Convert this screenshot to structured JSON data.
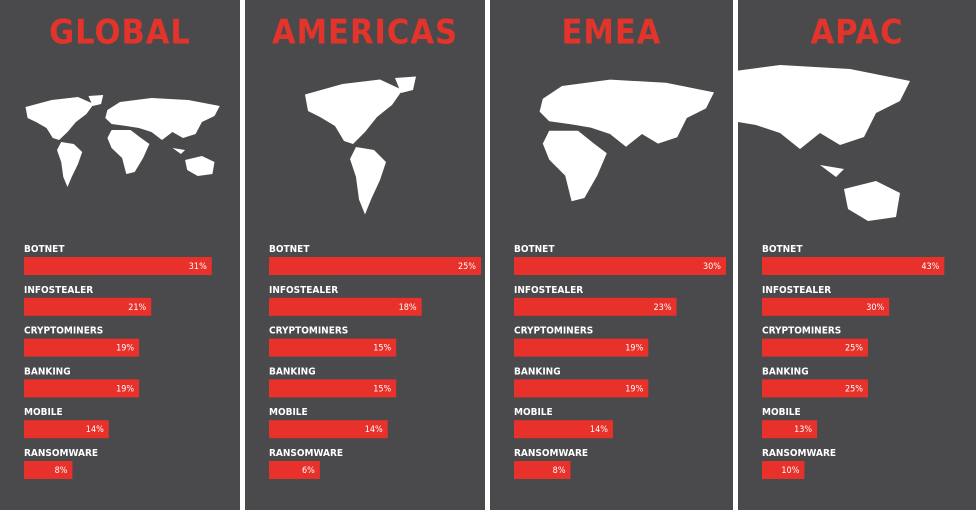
{
  "chart_data": [
    {
      "type": "bar",
      "title": "GLOBAL",
      "categories": [
        "BOTNET",
        "INFOSTEALER",
        "CRYPTOMINERS",
        "BANKING",
        "MOBILE",
        "RANSOMWARE"
      ],
      "values": [
        31,
        21,
        19,
        19,
        14,
        8
      ],
      "value_labels": [
        "31%",
        "21%",
        "19%",
        "19%",
        "14%",
        "8%"
      ],
      "color": "#e8312a",
      "xlim": [
        0,
        35
      ]
    },
    {
      "type": "bar",
      "title": "AMERICAS",
      "categories": [
        "BOTNET",
        "INFOSTEALER",
        "CRYPTOMINERS",
        "BANKING",
        "MOBILE",
        "RANSOMWARE"
      ],
      "values": [
        25,
        18,
        15,
        15,
        14,
        6
      ],
      "value_labels": [
        "25%",
        "18%",
        "15%",
        "15%",
        "14%",
        "6%"
      ],
      "color": "#e8312a",
      "xlim": [
        0,
        25
      ]
    },
    {
      "type": "bar",
      "title": "EMEA",
      "categories": [
        "BOTNET",
        "INFOSTEALER",
        "CRYPTOMINERS",
        "BANKING",
        "MOBILE",
        "RANSOMWARE"
      ],
      "values": [
        30,
        23,
        19,
        19,
        14,
        8
      ],
      "value_labels": [
        "30%",
        "23%",
        "19%",
        "19%",
        "14%",
        "8%"
      ],
      "color": "#e8312a",
      "xlim": [
        0,
        30
      ]
    },
    {
      "type": "bar",
      "title": "APAC",
      "categories": [
        "BOTNET",
        "INFOSTEALER",
        "CRYPTOMINERS",
        "BANKING",
        "MOBILE",
        "RANSOMWARE"
      ],
      "values": [
        43,
        30,
        25,
        25,
        13,
        10
      ],
      "value_labels": [
        "43%",
        "30%",
        "25%",
        "25%",
        "13%",
        "10%"
      ],
      "color": "#e8312a",
      "xlim": [
        0,
        50
      ]
    }
  ]
}
